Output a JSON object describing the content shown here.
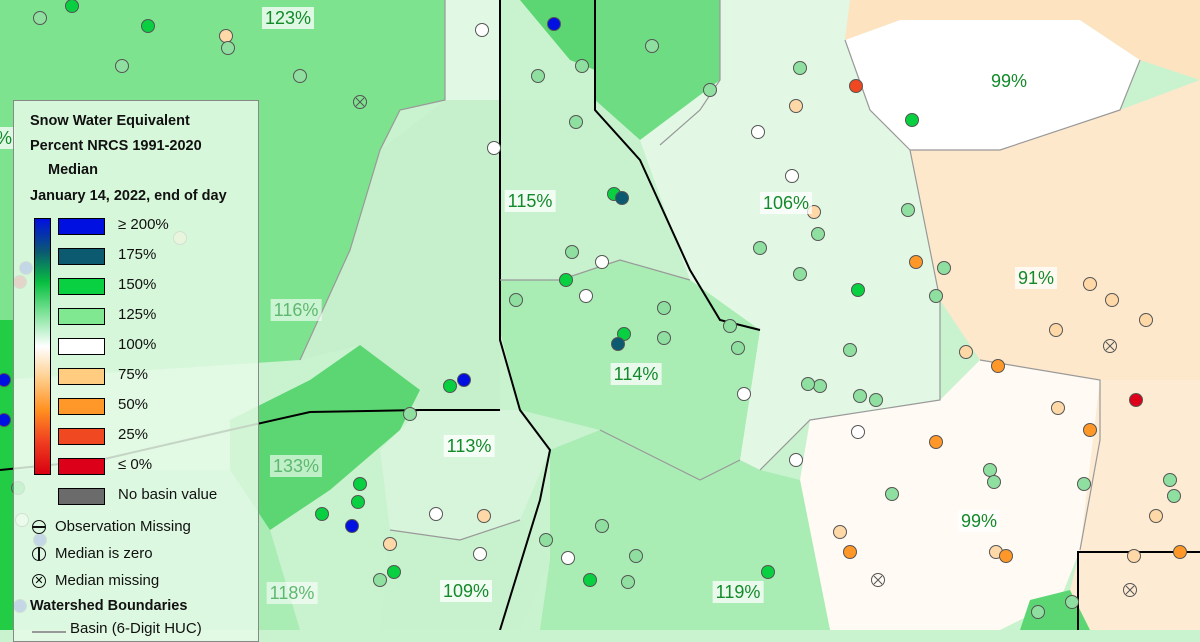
{
  "legend": {
    "title_line1": "Snow Water Equivalent",
    "title_line2": "Percent NRCS 1991-2020",
    "title_line3": "Median",
    "date": "January 14, 2022, end of day",
    "classes": [
      {
        "label": "≥ 200%",
        "color": "#0010e0"
      },
      {
        "label": "175%",
        "color": "#0b5a70"
      },
      {
        "label": "150%",
        "color": "#08d040"
      },
      {
        "label": "125%",
        "color": "#7fe890"
      },
      {
        "label": "100%",
        "color": "#ffffff"
      },
      {
        "label": "75%",
        "color": "#ffcc80"
      },
      {
        "label": "50%",
        "color": "#ff9828"
      },
      {
        "label": "25%",
        "color": "#f04820"
      },
      {
        "label": "≤ 0%",
        "color": "#dc0018"
      },
      {
        "label": "No basin value",
        "color": "#6b6b6b"
      }
    ],
    "symbols": [
      {
        "label": "Observation Missing",
        "icon": "circle-minus-icon"
      },
      {
        "label": "Median is zero",
        "icon": "circle-bar-icon"
      },
      {
        "label": "Median missing",
        "icon": "circle-x-icon"
      }
    ],
    "boundaries_title": "Watershed Boundaries",
    "boundary_basin": "Basin (6-Digit HUC)"
  },
  "basins": [
    {
      "label": "123%"
    },
    {
      "label": "%"
    },
    {
      "label": "116%"
    },
    {
      "label": "133%"
    },
    {
      "label": "118%"
    },
    {
      "label": "115%"
    },
    {
      "label": "106%"
    },
    {
      "label": "99%"
    },
    {
      "label": "91%"
    },
    {
      "label": "114%"
    },
    {
      "label": "113%"
    },
    {
      "label": "99%"
    },
    {
      "label": "109%"
    },
    {
      "label": "119%"
    }
  ]
}
